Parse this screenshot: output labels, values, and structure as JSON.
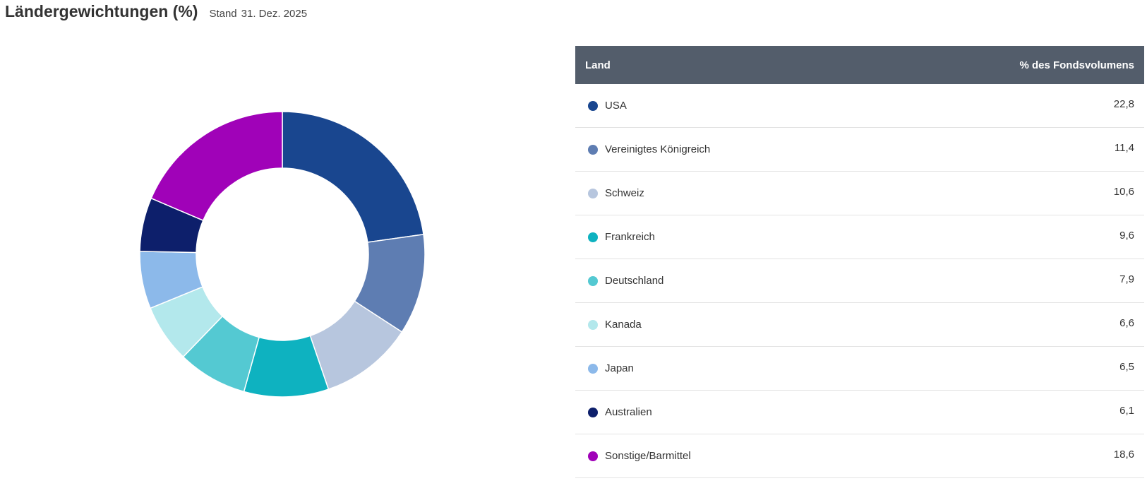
{
  "header": {
    "title": "Ländergewichtungen (%)",
    "stand_label": "Stand",
    "date": "31. Dez. 2025"
  },
  "table": {
    "col_country": "Land",
    "col_value": "% des Fondsvolumens"
  },
  "chart_data": {
    "type": "pie",
    "title": "Ländergewichtungen (%)",
    "categories": [
      "USA",
      "Vereinigtes Königreich",
      "Schweiz",
      "Frankreich",
      "Deutschland",
      "Kanada",
      "Japan",
      "Australien",
      "Sonstige/Barmittel"
    ],
    "values": [
      22.8,
      11.4,
      10.6,
      9.6,
      7.9,
      6.6,
      6.5,
      6.1,
      18.6
    ],
    "value_labels": [
      "22,8",
      "11,4",
      "10,6",
      "9,6",
      "7,9",
      "6,6",
      "6,5",
      "6,1",
      "18,6"
    ],
    "colors": [
      "#19468f",
      "#5e7db2",
      "#b7c6de",
      "#0eb2c0",
      "#54c9d2",
      "#b3e8ec",
      "#8cb9ea",
      "#0d1f6b",
      "#a002b8"
    ],
    "donut": true,
    "legend": "table-right"
  }
}
